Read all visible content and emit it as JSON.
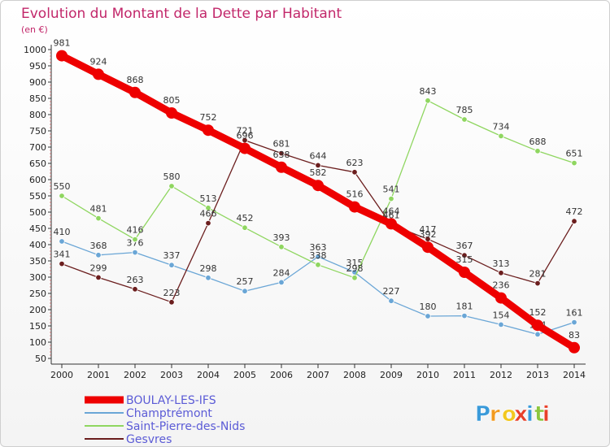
{
  "chart_data": {
    "type": "line",
    "title": "Evolution du Montant de la Dette par Habitant",
    "subtitle": "(en €)",
    "xlabel": "",
    "ylabel": "",
    "x": [
      2000,
      2001,
      2002,
      2003,
      2004,
      2005,
      2006,
      2007,
      2008,
      2009,
      2010,
      2011,
      2012,
      2013,
      2014
    ],
    "ylim": [
      50,
      1000
    ],
    "yticks": [
      50,
      100,
      150,
      200,
      250,
      300,
      350,
      400,
      450,
      500,
      550,
      600,
      650,
      700,
      750,
      800,
      850,
      900,
      950,
      1000
    ],
    "grid": false,
    "legend_position": "bottom-left",
    "series": [
      {
        "name": "BOULAY-LES-IFS",
        "color": "#ee0000",
        "emphasis": true,
        "values": [
          981,
          924,
          868,
          805,
          752,
          696,
          638,
          582,
          516,
          464,
          392,
          315,
          236,
          152,
          83
        ]
      },
      {
        "name": "Champtrémont",
        "color": "#6aa6d6",
        "emphasis": false,
        "values": [
          410,
          368,
          376,
          337,
          298,
          257,
          284,
          363,
          315,
          227,
          180,
          181,
          154,
          124,
          161
        ]
      },
      {
        "name": "Saint-Pierre-des-Nids",
        "color": "#8fd660",
        "emphasis": false,
        "values": [
          550,
          481,
          416,
          580,
          513,
          452,
          393,
          338,
          298,
          541,
          843,
          785,
          734,
          688,
          651
        ]
      },
      {
        "name": "Gesvres",
        "color": "#6b1e1e",
        "emphasis": false,
        "values": [
          341,
          299,
          263,
          223,
          466,
          721,
          681,
          644,
          623,
          461,
          417,
          367,
          313,
          281,
          472
        ]
      }
    ]
  },
  "logo": {
    "letters": [
      "P",
      "r",
      "o",
      "x",
      "i",
      "t",
      "i"
    ],
    "colors": [
      "#3a9ad9",
      "#f29a1f",
      "#f2c81f",
      "#e8402a",
      "#3a9ad9",
      "#8cc63f",
      "#e8402a"
    ]
  }
}
